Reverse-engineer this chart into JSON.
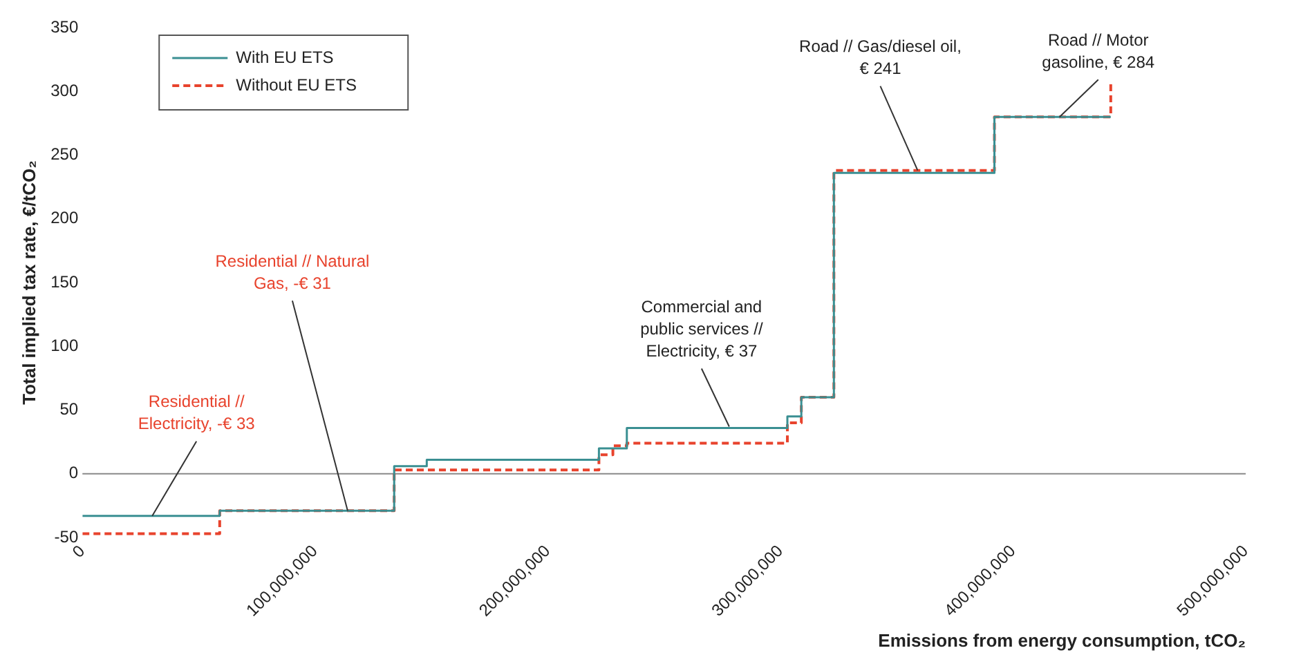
{
  "chart_data": {
    "type": "step",
    "xlabel": "Emissions from energy consumption, tCO₂",
    "ylabel": "Total implied tax rate, €/tCO₂",
    "xlim": [
      0,
      500000000
    ],
    "xticks": [
      0,
      {
        "value": 100000000,
        "label": "100,000,000"
      },
      {
        "value": 200000000,
        "label": "200,000,000"
      },
      {
        "value": 300000000,
        "label": "300,000,000"
      },
      {
        "value": 400000000,
        "label": "400,000,000"
      },
      {
        "value": 500000000,
        "label": "500,000,000"
      }
    ],
    "ylim": [
      -50,
      350
    ],
    "yticks": [
      -50,
      0,
      50,
      100,
      150,
      200,
      250,
      300,
      350
    ],
    "grid": false,
    "legend": "top left",
    "ref_lines": [
      {
        "axis": "y",
        "value": 0,
        "color": "#888888"
      }
    ],
    "series": [
      {
        "name": "With EU ETS",
        "color": "#3a8f92",
        "line_style": "solid",
        "x": [
          0,
          59000000,
          134000000,
          148000000,
          222000000,
          234000000,
          303000000,
          309000000,
          323000000,
          392000000,
          442000000
        ],
        "values": [
          -33,
          -29,
          6,
          11,
          20,
          36,
          45,
          60,
          236,
          280,
          280
        ]
      },
      {
        "name": "Without EU ETS",
        "color": "#e8432d",
        "line_style": "dashed",
        "x": [
          0,
          59000000,
          134000000,
          222000000,
          228000000,
          234000000,
          303000000,
          309000000,
          323000000,
          392000000,
          442000000,
          443000000
        ],
        "values": [
          -47,
          -29,
          3,
          15,
          22,
          24,
          40,
          60,
          238,
          280,
          306,
          306
        ]
      }
    ],
    "annotations": [
      {
        "text": "Residential //\nElectricity, -€ 33",
        "x": 30000000,
        "y": -33
      },
      {
        "text": "Residential // Natural\nGas, -€ 31",
        "x": 114000000,
        "y": -29
      },
      {
        "text": "Commercial and\npublic services //\nElectricity, € 37",
        "x": 278000000,
        "y": 37
      },
      {
        "text": "Road // Gas/diesel oil,\n€ 241",
        "x": 359000000,
        "y": 238
      },
      {
        "text": "Road // Motor\ngasoline, € 284",
        "x": 420000000,
        "y": 280
      }
    ]
  }
}
